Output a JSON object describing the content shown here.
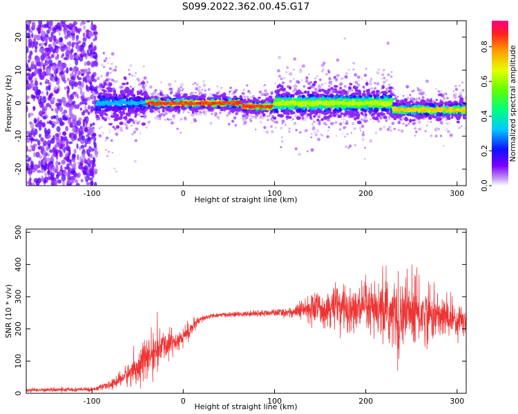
{
  "title": "S099.2022.362.00.45.G17",
  "colors": {
    "snr_line": "#ee3333",
    "axis": "#000000",
    "sparse_speckle": "#8a2be2"
  },
  "chart_data": [
    {
      "type": "heatmap",
      "name": "spectrogram",
      "xlabel": "Height of straight line (km)",
      "ylabel": "Frequency (Hz)",
      "xlim": [
        -172,
        310
      ],
      "ylim": [
        -25,
        25
      ],
      "xticks": [
        -100,
        0,
        100,
        200,
        300
      ],
      "yticks": [
        -20,
        -10,
        0,
        10,
        20
      ],
      "xtick_labels": [
        "-100",
        "0",
        "100",
        "200",
        "300"
      ],
      "ytick_labels": [
        "-20",
        "-10",
        "0",
        "10",
        "20"
      ],
      "colorbar": {
        "label": "Normalized spectral amplitude",
        "range": [
          0.0,
          0.95
        ],
        "ticks": [
          0.0,
          0.2,
          0.4,
          0.6,
          0.8
        ],
        "tick_labels": [
          "0.0",
          "0.2",
          "0.4",
          "0.6",
          "0.8"
        ],
        "colormap": "rainbow"
      },
      "features": [
        {
          "description_range_km": [
            -172,
            -95
          ],
          "kind": "noise",
          "amplitude": 0.15
        },
        {
          "description_range_km": [
            -95,
            -40
          ],
          "kind": "signal",
          "center_hz": 0.0,
          "spread_hz": 3.0,
          "amplitude": 0.35
        },
        {
          "description_range_km": [
            -40,
            65
          ],
          "kind": "signal",
          "center_hz": 0.0,
          "spread_hz": 1.2,
          "amplitude": 0.95
        },
        {
          "description_range_km": [
            65,
            100
          ],
          "kind": "signal",
          "center_hz": -1.0,
          "spread_hz": 1.2,
          "amplitude": 0.95
        },
        {
          "description_range_km": [
            100,
            230
          ],
          "kind": "signal",
          "center_hz": 0.0,
          "spread_hz": 2.5,
          "amplitude": 0.7
        },
        {
          "description_range_km": [
            230,
            310
          ],
          "kind": "signal",
          "center_hz": -2.0,
          "spread_hz": 1.5,
          "amplitude": 0.8
        }
      ]
    },
    {
      "type": "line",
      "name": "snr",
      "xlabel": "Height of straight line (km)",
      "ylabel": "SNR (10 * v/v)",
      "xlim": [
        -172,
        310
      ],
      "ylim": [
        0,
        510
      ],
      "xticks": [
        -100,
        0,
        100,
        200,
        300
      ],
      "yticks": [
        0,
        100,
        200,
        300,
        400,
        500
      ],
      "xtick_labels": [
        "-100",
        "0",
        "100",
        "200",
        "300"
      ],
      "ytick_labels": [
        "0",
        "100",
        "200",
        "300",
        "400",
        "500"
      ],
      "envelope": {
        "x": [
          -172,
          -100,
          -80,
          -60,
          -40,
          -20,
          0,
          10,
          20,
          30,
          40,
          60,
          80,
          100,
          120,
          140,
          160,
          180,
          200,
          220,
          240,
          250,
          260,
          280,
          300,
          310
        ],
        "mean": [
          10,
          12,
          25,
          60,
          110,
          150,
          175,
          205,
          230,
          240,
          243,
          245,
          248,
          250,
          252,
          262,
          268,
          262,
          258,
          250,
          245,
          250,
          245,
          240,
          230,
          225
        ],
        "noise": [
          5,
          6,
          10,
          30,
          60,
          40,
          30,
          20,
          10,
          6,
          6,
          7,
          8,
          10,
          15,
          40,
          55,
          65,
          70,
          85,
          100,
          110,
          85,
          60,
          50,
          45
        ]
      }
    }
  ]
}
